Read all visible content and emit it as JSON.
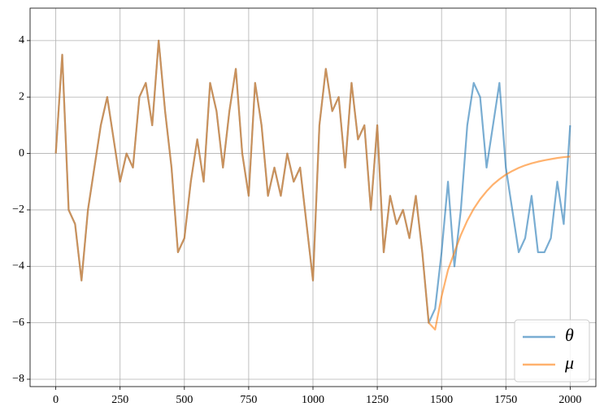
{
  "chart_data": {
    "type": "line",
    "x": [
      0,
      25,
      50,
      75,
      100,
      125,
      150,
      175,
      200,
      225,
      250,
      275,
      300,
      325,
      350,
      375,
      400,
      425,
      450,
      475,
      500,
      525,
      550,
      575,
      600,
      625,
      650,
      675,
      700,
      725,
      750,
      775,
      800,
      825,
      850,
      875,
      900,
      925,
      950,
      975,
      1000,
      1025,
      1050,
      1075,
      1100,
      1125,
      1150,
      1175,
      1200,
      1225,
      1250,
      1275,
      1300,
      1325,
      1350,
      1375,
      1400,
      1425,
      1450,
      1475,
      1500,
      1525,
      1550,
      1575,
      1600,
      1625,
      1650,
      1675,
      1700,
      1725,
      1750,
      1775,
      1800,
      1825,
      1850,
      1875,
      1900,
      1925,
      1950,
      1975,
      2000
    ],
    "series": [
      {
        "name": "θ",
        "color": "#1f77b4",
        "values": [
          0,
          3.5,
          -2.0,
          -2.5,
          -4.5,
          -2.0,
          -0.5,
          1.0,
          2.0,
          0.5,
          -1.0,
          0.0,
          -0.5,
          2.0,
          2.5,
          1.0,
          4.0,
          1.5,
          -0.5,
          -3.5,
          -3.0,
          -1.0,
          0.5,
          -1.0,
          2.5,
          1.5,
          -0.5,
          1.5,
          3.0,
          0.0,
          -1.5,
          2.5,
          1.0,
          -1.5,
          -0.5,
          -1.5,
          0.0,
          -1.0,
          -0.5,
          -2.5,
          -4.5,
          1.0,
          3.0,
          1.5,
          2.0,
          -0.5,
          2.5,
          0.5,
          1.0,
          -2.0,
          1.0,
          -3.5,
          -1.5,
          -2.5,
          -2.0,
          -3.0,
          -1.5,
          -3.5,
          -6.0,
          -5.5,
          -3.5,
          -1.0,
          -4.0,
          -2.0,
          1.0,
          2.5,
          2.0,
          -0.5,
          1.0,
          2.5,
          -0.5,
          -2.0,
          -3.5,
          -3.0,
          -1.5,
          -3.5,
          -3.5,
          -3.0,
          -1.0,
          -2.5,
          1.0
        ]
      },
      {
        "name": "μ",
        "color": "#ff7f0e",
        "values": [
          0,
          3.5,
          -2.0,
          -2.5,
          -4.5,
          -2.0,
          -0.5,
          1.0,
          2.0,
          0.5,
          -1.0,
          0.0,
          -0.5,
          2.0,
          2.5,
          1.0,
          4.0,
          1.5,
          -0.5,
          -3.5,
          -3.0,
          -1.0,
          0.5,
          -1.0,
          2.5,
          1.5,
          -0.5,
          1.5,
          3.0,
          0.0,
          -1.5,
          2.5,
          1.0,
          -1.5,
          -0.5,
          -1.5,
          0.0,
          -1.0,
          -0.5,
          -2.5,
          -4.5,
          1.0,
          3.0,
          1.5,
          2.0,
          -0.5,
          2.5,
          0.5,
          1.0,
          -2.0,
          1.0,
          -3.5,
          -1.5,
          -2.5,
          -2.0,
          -3.0,
          -1.5,
          -3.5,
          -6.0,
          -6.24,
          -5.07,
          -4.13,
          -3.5,
          -2.89,
          -2.38,
          -1.96,
          -1.62,
          -1.34,
          -1.1,
          -0.91,
          -0.75,
          -0.62,
          -0.51,
          -0.42,
          -0.35,
          -0.29,
          -0.24,
          -0.2,
          -0.16,
          -0.13,
          -0.11
        ]
      }
    ],
    "xlim": [
      -100,
      2100
    ],
    "ylim": [
      -8.26,
      5.15
    ],
    "xticks": [
      0,
      250,
      500,
      750,
      1000,
      1250,
      1500,
      1750,
      2000
    ],
    "yticks": [
      {
        "value": -8,
        "label": "−8"
      },
      {
        "value": -6,
        "label": "−6"
      },
      {
        "value": -4,
        "label": "−4"
      },
      {
        "value": -2,
        "label": "−2"
      },
      0,
      2,
      4
    ],
    "grid": true,
    "legend": "lower right"
  }
}
